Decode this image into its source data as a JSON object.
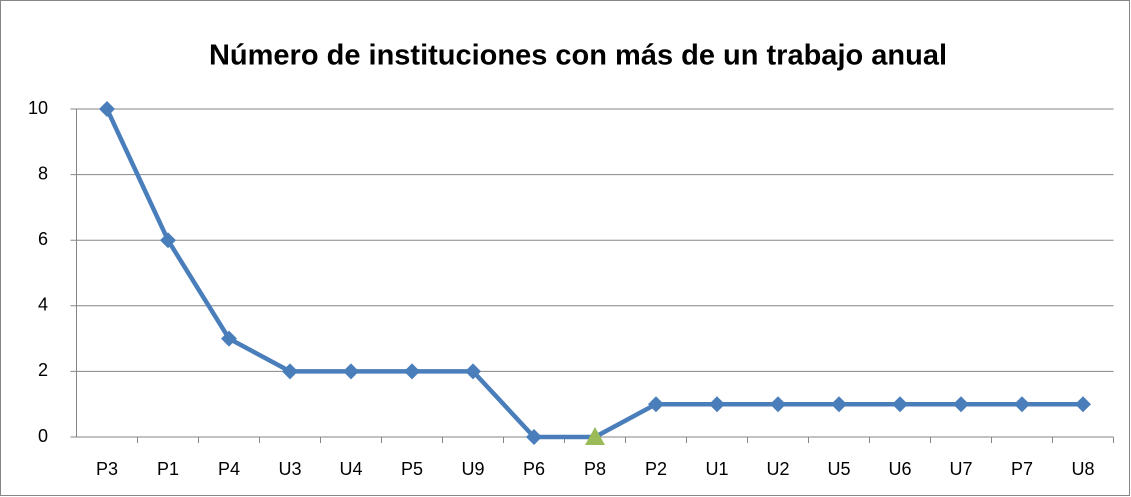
{
  "chart_data": {
    "type": "line",
    "title": "Número de instituciones con más de un trabajo anual",
    "categories": [
      "P3",
      "P1",
      "P4",
      "U3",
      "U4",
      "P5",
      "U9",
      "P6",
      "P8",
      "P2",
      "U1",
      "U2",
      "U5",
      "U6",
      "U7",
      "P7",
      "U8"
    ],
    "series": [
      {
        "name": "Número de instituciones",
        "color": "#4a7ebb",
        "values": [
          10,
          6,
          3,
          2,
          2,
          2,
          2,
          0,
          0,
          1,
          1,
          1,
          1,
          1,
          1,
          1,
          1
        ],
        "markers": [
          "diamond",
          "diamond",
          "diamond",
          "diamond",
          "diamond",
          "diamond",
          "diamond",
          "diamond",
          "triangle",
          "diamond",
          "diamond",
          "diamond",
          "diamond",
          "diamond",
          "diamond",
          "diamond",
          "diamond"
        ],
        "marker_colors": [
          "#4a7ebb",
          "#4a7ebb",
          "#4a7ebb",
          "#4a7ebb",
          "#4a7ebb",
          "#4a7ebb",
          "#4a7ebb",
          "#4a7ebb",
          "#9bbb59",
          "#4a7ebb",
          "#4a7ebb",
          "#4a7ebb",
          "#4a7ebb",
          "#4a7ebb",
          "#4a7ebb",
          "#4a7ebb",
          "#4a7ebb"
        ]
      }
    ],
    "ylim": [
      0,
      10
    ],
    "yticks": [
      0,
      2,
      4,
      6,
      8,
      10
    ],
    "grid": true
  }
}
